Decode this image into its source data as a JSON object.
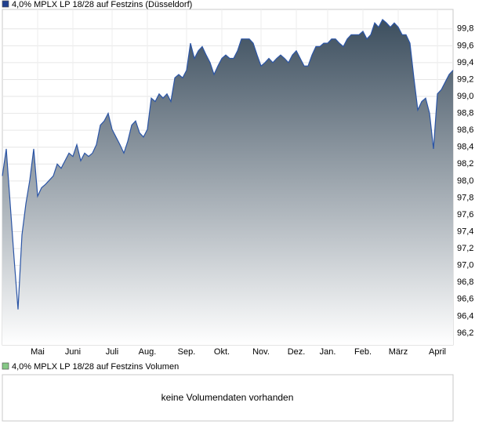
{
  "chart_data": [
    {
      "type": "area",
      "title": "4,0% MPLX LP 18/28 auf Festzins (Düsseldorf)",
      "legend_color": "#1f3f8f",
      "color": "#2b55a6",
      "fill_color": "#3c4e5e",
      "values": [
        98.06,
        98.38,
        97.73,
        97.08,
        96.48,
        97.36,
        97.73,
        98.01,
        98.38,
        97.82,
        97.92,
        97.96,
        98.01,
        98.06,
        98.2,
        98.15,
        98.24,
        98.33,
        98.29,
        98.43,
        98.24,
        98.33,
        98.29,
        98.33,
        98.43,
        98.66,
        98.71,
        98.8,
        98.61,
        98.52,
        98.43,
        98.33,
        98.47,
        98.66,
        98.71,
        98.57,
        98.52,
        98.61,
        98.98,
        98.94,
        99.03,
        98.98,
        99.03,
        98.94,
        99.22,
        99.26,
        99.22,
        99.31,
        99.63,
        99.45,
        99.54,
        99.59,
        99.49,
        99.4,
        99.26,
        99.36,
        99.45,
        99.49,
        99.45,
        99.45,
        99.54,
        99.68,
        99.68,
        99.68,
        99.63,
        99.49,
        99.36,
        99.4,
        99.45,
        99.4,
        99.45,
        99.49,
        99.45,
        99.4,
        99.49,
        99.54,
        99.45,
        99.36,
        99.36,
        99.49,
        99.59,
        99.59,
        99.63,
        99.63,
        99.68,
        99.68,
        99.63,
        99.59,
        99.68,
        99.73,
        99.73,
        99.73,
        99.77,
        99.68,
        99.73,
        99.87,
        99.82,
        99.91,
        99.87,
        99.82,
        99.87,
        99.82,
        99.73,
        99.73,
        99.63,
        99.22,
        98.84,
        98.94,
        98.98,
        98.8,
        98.38,
        99.03,
        99.08,
        99.17,
        99.26,
        99.31
      ],
      "xlim": [
        0,
        115
      ],
      "xticks": [
        {
          "value": 9,
          "label": "Mai"
        },
        {
          "value": 18,
          "label": "Juni"
        },
        {
          "value": 28,
          "label": "Juli"
        },
        {
          "value": 37,
          "label": "Aug."
        },
        {
          "value": 47,
          "label": "Sep."
        },
        {
          "value": 56,
          "label": "Okt."
        },
        {
          "value": 66,
          "label": "Nov."
        },
        {
          "value": 75,
          "label": "Dez."
        },
        {
          "value": 83,
          "label": "Jan."
        },
        {
          "value": 92,
          "label": "Feb."
        },
        {
          "value": 101,
          "label": "März"
        },
        {
          "value": 111,
          "label": "April"
        }
      ],
      "ylim": [
        96.06,
        100.03
      ],
      "yticks": [
        {
          "value": 96.2,
          "label": "96,2"
        },
        {
          "value": 96.4,
          "label": "96,4"
        },
        {
          "value": 96.6,
          "label": "96,6"
        },
        {
          "value": 96.8,
          "label": "96,8"
        },
        {
          "value": 97.0,
          "label": "97,0"
        },
        {
          "value": 97.2,
          "label": "97,2"
        },
        {
          "value": 97.4,
          "label": "97,4"
        },
        {
          "value": 97.6,
          "label": "97,6"
        },
        {
          "value": 97.8,
          "label": "97,8"
        },
        {
          "value": 98.0,
          "label": "98,0"
        },
        {
          "value": 98.2,
          "label": "98,2"
        },
        {
          "value": 98.4,
          "label": "98,4"
        },
        {
          "value": 98.6,
          "label": "98,6"
        },
        {
          "value": 98.8,
          "label": "98,8"
        },
        {
          "value": 99.0,
          "label": "99,0"
        },
        {
          "value": 99.2,
          "label": "99,2"
        },
        {
          "value": 99.4,
          "label": "99,4"
        },
        {
          "value": 99.6,
          "label": "99,6"
        },
        {
          "value": 99.8,
          "label": "99,8"
        }
      ],
      "grid": true
    },
    {
      "type": "volume",
      "title": "4,0% MPLX LP 18/28 auf Festzins Volumen",
      "legend_color": "#86c986",
      "message": "keine Volumendaten vorhanden"
    }
  ]
}
